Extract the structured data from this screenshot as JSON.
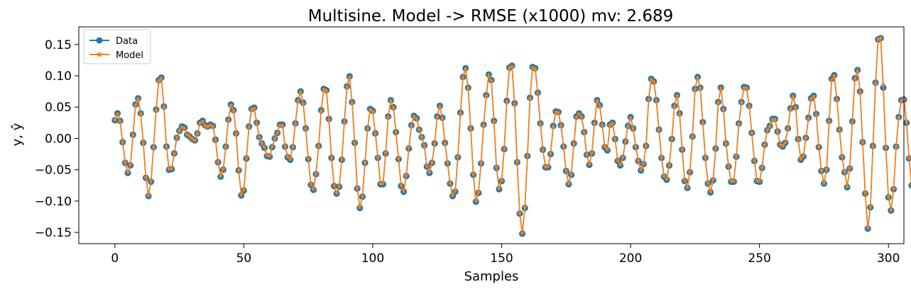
{
  "chart_data": {
    "type": "line",
    "title": "Multisine. Model -> RMSE (x1000) mv: 2.689",
    "xlabel": "Samples",
    "ylabel": "y, ŷ",
    "xlim": [
      -14,
      306
    ],
    "ylim": [
      -0.168,
      0.178
    ],
    "xticks": [
      0,
      50,
      100,
      150,
      200,
      250,
      300
    ],
    "yticks": [
      -0.15,
      -0.1,
      -0.05,
      0.0,
      0.05,
      0.1,
      0.15
    ],
    "ytick_labels": [
      "−0.15",
      "−0.10",
      "−0.05",
      "0.00",
      "0.05",
      "0.10",
      "0.15"
    ],
    "xtick_labels": [
      "0",
      "50",
      "100",
      "150",
      "200",
      "250",
      "300"
    ],
    "grid": false,
    "legend_position": "top-left",
    "colors": {
      "data": "#1f77b4",
      "model": "#ff7f0e"
    },
    "x_start": 0,
    "series": [
      {
        "name": "Data",
        "marker": "circle",
        "values": [
          0.029,
          0.04,
          0.028,
          -0.006,
          -0.039,
          -0.055,
          -0.043,
          0.006,
          0.054,
          0.064,
          0.04,
          -0.007,
          -0.063,
          -0.092,
          -0.069,
          -0.014,
          0.046,
          0.093,
          0.097,
          0.051,
          -0.013,
          -0.05,
          -0.049,
          -0.024,
          0.001,
          0.012,
          0.019,
          0.017,
          0.006,
          0.003,
          -0.001,
          -0.003,
          0.008,
          0.025,
          0.028,
          0.021,
          0.019,
          0.022,
          0.02,
          -0.002,
          -0.038,
          -0.061,
          -0.05,
          -0.013,
          0.03,
          0.054,
          0.045,
          0.008,
          -0.051,
          -0.091,
          -0.083,
          -0.032,
          0.019,
          0.047,
          0.049,
          0.025,
          0.002,
          -0.008,
          -0.015,
          -0.028,
          -0.029,
          -0.014,
          0.0,
          0.009,
          0.022,
          0.022,
          -0.013,
          -0.03,
          -0.034,
          -0.014,
          0.024,
          0.061,
          0.075,
          0.057,
          0.016,
          -0.033,
          -0.074,
          -0.082,
          -0.057,
          -0.012,
          0.045,
          0.079,
          0.077,
          0.031,
          -0.031,
          -0.076,
          -0.088,
          -0.077,
          -0.034,
          0.027,
          0.083,
          0.099,
          0.058,
          -0.007,
          -0.08,
          -0.111,
          -0.093,
          -0.039,
          0.016,
          0.047,
          0.044,
          0.008,
          -0.031,
          -0.073,
          -0.073,
          -0.024,
          0.035,
          0.061,
          0.05,
          0.01,
          -0.033,
          -0.076,
          -0.085,
          -0.06,
          -0.016,
          0.021,
          0.036,
          0.032,
          0.014,
          0.002,
          -0.011,
          -0.045,
          -0.055,
          -0.039,
          -0.008,
          0.035,
          0.052,
          0.033,
          -0.007,
          -0.04,
          -0.072,
          -0.092,
          -0.085,
          -0.03,
          0.041,
          0.098,
          0.112,
          0.081,
          0.016,
          -0.058,
          -0.101,
          -0.087,
          -0.04,
          0.022,
          0.069,
          0.102,
          0.093,
          0.028,
          -0.047,
          -0.081,
          -0.068,
          -0.017,
          0.06,
          0.113,
          0.116,
          0.056,
          -0.038,
          -0.12,
          -0.152,
          -0.111,
          -0.028,
          0.065,
          0.114,
          0.112,
          0.073,
          0.024,
          -0.018,
          -0.046,
          -0.046,
          -0.025,
          0.02,
          0.043,
          0.042,
          0.021,
          -0.013,
          -0.052,
          -0.073,
          -0.058,
          -0.008,
          0.035,
          0.04,
          0.035,
          0.01,
          -0.026,
          -0.042,
          -0.024,
          0.025,
          0.061,
          0.053,
          0.022,
          -0.014,
          -0.019,
          0.022,
          0.025,
          -0.001,
          -0.036,
          -0.043,
          -0.031,
          -0.005,
          0.02,
          0.034,
          0.016,
          -0.014,
          -0.036,
          -0.051,
          -0.041,
          -0.012,
          0.063,
          0.095,
          0.091,
          0.061,
          0.014,
          -0.031,
          -0.061,
          -0.066,
          -0.043,
          -0.001,
          0.052,
          0.069,
          0.04,
          -0.018,
          -0.068,
          -0.079,
          -0.054,
          0.003,
          0.079,
          0.098,
          0.081,
          0.026,
          -0.031,
          -0.072,
          -0.086,
          -0.067,
          -0.016,
          0.058,
          0.081,
          0.047,
          -0.008,
          -0.045,
          -0.069,
          -0.069,
          -0.029,
          0.024,
          0.058,
          0.082,
          0.081,
          0.052,
          0.009,
          -0.036,
          -0.068,
          -0.069,
          -0.047,
          -0.01,
          0.013,
          0.02,
          0.031,
          0.031,
          0.011,
          -0.01,
          -0.013,
          -0.007,
          0.016,
          0.048,
          0.068,
          0.05,
          -0.001,
          -0.034,
          -0.029,
          0.001,
          0.033,
          0.064,
          0.068,
          0.039,
          -0.014,
          -0.052,
          -0.072,
          -0.05,
          0.028,
          0.095,
          0.101,
          0.063,
          0.014,
          -0.03,
          -0.054,
          -0.078,
          -0.048,
          0.027,
          0.096,
          0.109,
          0.075,
          -0.006,
          -0.088,
          -0.144,
          -0.11,
          -0.012,
          0.089,
          0.158,
          0.16,
          0.081,
          -0.015,
          -0.094,
          -0.115,
          -0.081,
          -0.013,
          0.034,
          0.061,
          0.062,
          0.025,
          -0.032,
          -0.075
        ]
      },
      {
        "name": "Model",
        "marker": "star",
        "values": [
          0.03,
          0.039,
          0.027,
          -0.006,
          -0.038,
          -0.054,
          -0.042,
          0.006,
          0.053,
          0.063,
          0.039,
          -0.007,
          -0.062,
          -0.091,
          -0.068,
          -0.014,
          0.045,
          0.092,
          0.096,
          0.05,
          -0.013,
          -0.049,
          -0.048,
          -0.024,
          0.001,
          0.012,
          0.018,
          0.016,
          0.006,
          0.003,
          -0.001,
          -0.003,
          0.008,
          0.024,
          0.027,
          0.02,
          0.018,
          0.021,
          0.019,
          -0.002,
          -0.037,
          -0.06,
          -0.049,
          -0.013,
          0.029,
          0.053,
          0.044,
          0.008,
          -0.05,
          -0.09,
          -0.082,
          -0.031,
          0.018,
          0.046,
          0.048,
          0.024,
          0.002,
          -0.008,
          -0.014,
          -0.027,
          -0.028,
          -0.013,
          0.0,
          0.009,
          0.021,
          0.021,
          -0.012,
          -0.029,
          -0.033,
          -0.013,
          0.023,
          0.06,
          0.074,
          0.056,
          0.016,
          -0.032,
          -0.073,
          -0.081,
          -0.056,
          -0.012,
          0.044,
          0.078,
          0.076,
          0.03,
          -0.03,
          -0.075,
          -0.087,
          -0.076,
          -0.033,
          0.026,
          0.082,
          0.098,
          0.057,
          -0.007,
          -0.079,
          -0.11,
          -0.092,
          -0.038,
          0.016,
          0.046,
          0.043,
          0.008,
          -0.03,
          -0.072,
          -0.072,
          -0.023,
          0.034,
          0.06,
          0.049,
          0.01,
          -0.032,
          -0.075,
          -0.084,
          -0.059,
          -0.015,
          0.02,
          0.035,
          0.031,
          0.014,
          0.002,
          -0.011,
          -0.044,
          -0.054,
          -0.038,
          -0.008,
          0.034,
          0.051,
          0.032,
          -0.007,
          -0.039,
          -0.071,
          -0.091,
          -0.084,
          -0.029,
          0.04,
          0.097,
          0.111,
          0.08,
          0.016,
          -0.057,
          -0.1,
          -0.086,
          -0.039,
          0.021,
          0.068,
          0.101,
          0.092,
          0.027,
          -0.046,
          -0.08,
          -0.067,
          -0.016,
          0.059,
          0.112,
          0.115,
          0.055,
          -0.037,
          -0.119,
          -0.151,
          -0.11,
          -0.027,
          0.064,
          0.113,
          0.111,
          0.072,
          0.023,
          -0.018,
          -0.045,
          -0.045,
          -0.024,
          0.019,
          0.042,
          0.041,
          0.02,
          -0.012,
          -0.051,
          -0.072,
          -0.057,
          -0.008,
          0.034,
          0.039,
          0.034,
          0.01,
          -0.025,
          -0.041,
          -0.023,
          0.024,
          0.06,
          0.052,
          0.021,
          -0.013,
          -0.018,
          0.021,
          0.024,
          -0.001,
          -0.035,
          -0.042,
          -0.03,
          -0.005,
          0.019,
          0.033,
          0.016,
          -0.013,
          -0.035,
          -0.05,
          -0.04,
          -0.012,
          0.062,
          0.094,
          0.09,
          0.06,
          0.014,
          -0.03,
          -0.06,
          -0.065,
          -0.042,
          -0.001,
          0.051,
          0.068,
          0.039,
          -0.017,
          -0.067,
          -0.078,
          -0.053,
          0.003,
          0.078,
          0.097,
          0.08,
          0.025,
          -0.03,
          -0.071,
          -0.085,
          -0.066,
          -0.015,
          0.057,
          0.08,
          0.046,
          -0.008,
          -0.044,
          -0.068,
          -0.068,
          -0.028,
          0.023,
          0.057,
          0.081,
          0.08,
          0.051,
          0.009,
          -0.035,
          -0.067,
          -0.068,
          -0.046,
          -0.01,
          0.013,
          0.019,
          0.03,
          0.03,
          0.011,
          -0.01,
          -0.012,
          -0.007,
          0.016,
          0.047,
          0.067,
          0.049,
          -0.001,
          -0.033,
          -0.028,
          0.001,
          0.032,
          0.063,
          0.067,
          0.038,
          -0.013,
          -0.051,
          -0.071,
          -0.049,
          0.027,
          0.094,
          0.1,
          0.062,
          0.014,
          -0.029,
          -0.053,
          -0.077,
          -0.047,
          0.026,
          0.095,
          0.108,
          0.074,
          -0.006,
          -0.087,
          -0.143,
          -0.109,
          -0.012,
          0.088,
          0.158,
          0.16,
          0.086,
          -0.014,
          -0.093,
          -0.114,
          -0.08,
          -0.013,
          0.033,
          0.06,
          0.063,
          0.028,
          -0.031,
          -0.074
        ]
      }
    ]
  }
}
